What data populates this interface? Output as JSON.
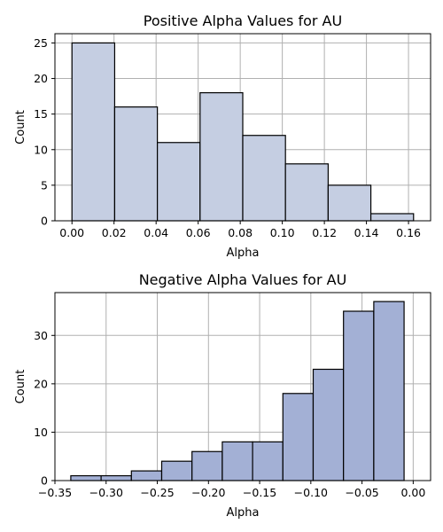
{
  "chart_data": [
    {
      "type": "bar",
      "title": "Positive Alpha Values for AU",
      "xlabel": "Alpha",
      "ylabel": "Count",
      "bin_edges": [
        0.0,
        0.0203,
        0.0406,
        0.0609,
        0.0812,
        0.1015,
        0.1218,
        0.1421,
        0.1624
      ],
      "values": [
        25,
        16,
        11,
        18,
        12,
        8,
        5,
        1
      ],
      "xlim": [
        -0.0081,
        0.1705
      ],
      "ylim": [
        0,
        26.3
      ],
      "xticks": [
        0.0,
        0.02,
        0.04,
        0.06,
        0.08,
        0.1,
        0.12,
        0.14,
        0.16
      ],
      "xtick_labels": [
        "0.00",
        "0.02",
        "0.04",
        "0.06",
        "0.08",
        "0.10",
        "0.12",
        "0.14",
        "0.16"
      ],
      "yticks": [
        0,
        5,
        10,
        15,
        20,
        25
      ],
      "ytick_labels": [
        "0",
        "5",
        "10",
        "15",
        "20",
        "25"
      ],
      "grid": true,
      "bar_color": "#c5cee2"
    },
    {
      "type": "bar",
      "title": "Negative Alpha Values for AU",
      "xlabel": "Alpha",
      "ylabel": "Count",
      "bin_edges": [
        -0.3345,
        -0.3049,
        -0.2753,
        -0.2457,
        -0.2161,
        -0.1865,
        -0.1569,
        -0.1273,
        -0.0977,
        -0.0681,
        -0.0385,
        -0.0089
      ],
      "values": [
        1,
        1,
        2,
        4,
        6,
        8,
        8,
        18,
        23,
        35,
        37
      ],
      "xlim": [
        -0.35,
        0.017
      ],
      "ylim": [
        0,
        38.85
      ],
      "xticks": [
        -0.35,
        -0.3,
        -0.25,
        -0.2,
        -0.15,
        -0.1,
        -0.05,
        0.0
      ],
      "xtick_labels": [
        "−0.35",
        "−0.30",
        "−0.25",
        "−0.20",
        "−0.15",
        "−0.10",
        "−0.05",
        "0.00"
      ],
      "yticks": [
        0,
        10,
        20,
        30
      ],
      "ytick_labels": [
        "0",
        "10",
        "20",
        "30"
      ],
      "grid": true,
      "bar_color": "#a3b0d5"
    }
  ]
}
